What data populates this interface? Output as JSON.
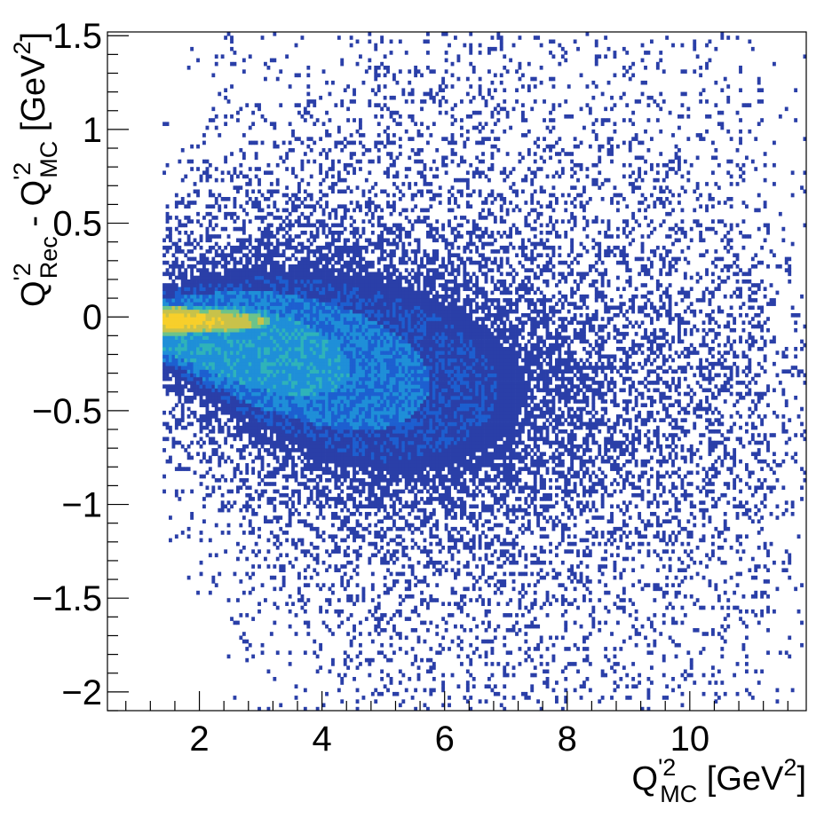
{
  "chart_data": {
    "type": "heatmap",
    "title": "",
    "xlabel": {
      "base": "Q",
      "sup": "'2",
      "sub": "MC",
      "unit_prefix": " [GeV",
      "unit_sup": "2",
      "unit_suffix": "]"
    },
    "ylabel": {
      "term1_base": "Q",
      "term1_sup": "'2",
      "term1_sub": "Rec",
      "minus": " - ",
      "term2_base": "Q",
      "term2_sup": "'2",
      "term2_sub": "MC",
      "unit_prefix": " [GeV",
      "unit_sup": "2",
      "unit_suffix": "]"
    },
    "xlim": [
      0.5,
      11.9
    ],
    "ylim": [
      -2.1,
      1.52
    ],
    "x_ticks": [
      {
        "value": 2,
        "label": "2"
      },
      {
        "value": 4,
        "label": "4"
      },
      {
        "value": 6,
        "label": "6"
      },
      {
        "value": 8,
        "label": "8"
      },
      {
        "value": 10,
        "label": "10"
      }
    ],
    "y_ticks": [
      {
        "value": 1.5,
        "label": "1.5"
      },
      {
        "value": 1,
        "label": "1"
      },
      {
        "value": 0.5,
        "label": "0.5"
      },
      {
        "value": 0,
        "label": "0"
      },
      {
        "value": -0.5,
        "label": "−0.5"
      },
      {
        "value": -1,
        "label": "−1"
      },
      {
        "value": -1.5,
        "label": "−1.5"
      },
      {
        "value": -2,
        "label": "−2"
      }
    ],
    "grid": false,
    "legend": "none",
    "colormap": [
      "#2a3fa8",
      "#1d5fd0",
      "#1f8fd8",
      "#2fb3b9",
      "#6cc38a",
      "#c8c24a",
      "#f7cf2b"
    ],
    "bin_width_x": 0.05,
    "bin_width_y": 0.02,
    "density_features": {
      "x_min_populated": 1.4,
      "core_ridge": {
        "x_range": [
          1.4,
          3.6
        ],
        "y_center": -0.03,
        "y_width": 0.12,
        "peak": "yellow"
      },
      "spread_by_x": [
        {
          "x": 1.5,
          "y_low": -0.35,
          "y_high": 0.12
        },
        {
          "x": 3,
          "y_low": -0.7,
          "y_high": 0.25
        },
        {
          "x": 5,
          "y_low": -1.1,
          "y_high": 0.35
        },
        {
          "x": 7,
          "y_low": -1.3,
          "y_high": 0.4
        },
        {
          "x": 9,
          "y_low": -1.3,
          "y_high": 0.3
        },
        {
          "x": 11,
          "y_low": -1.0,
          "y_high": 0.2
        }
      ]
    }
  }
}
